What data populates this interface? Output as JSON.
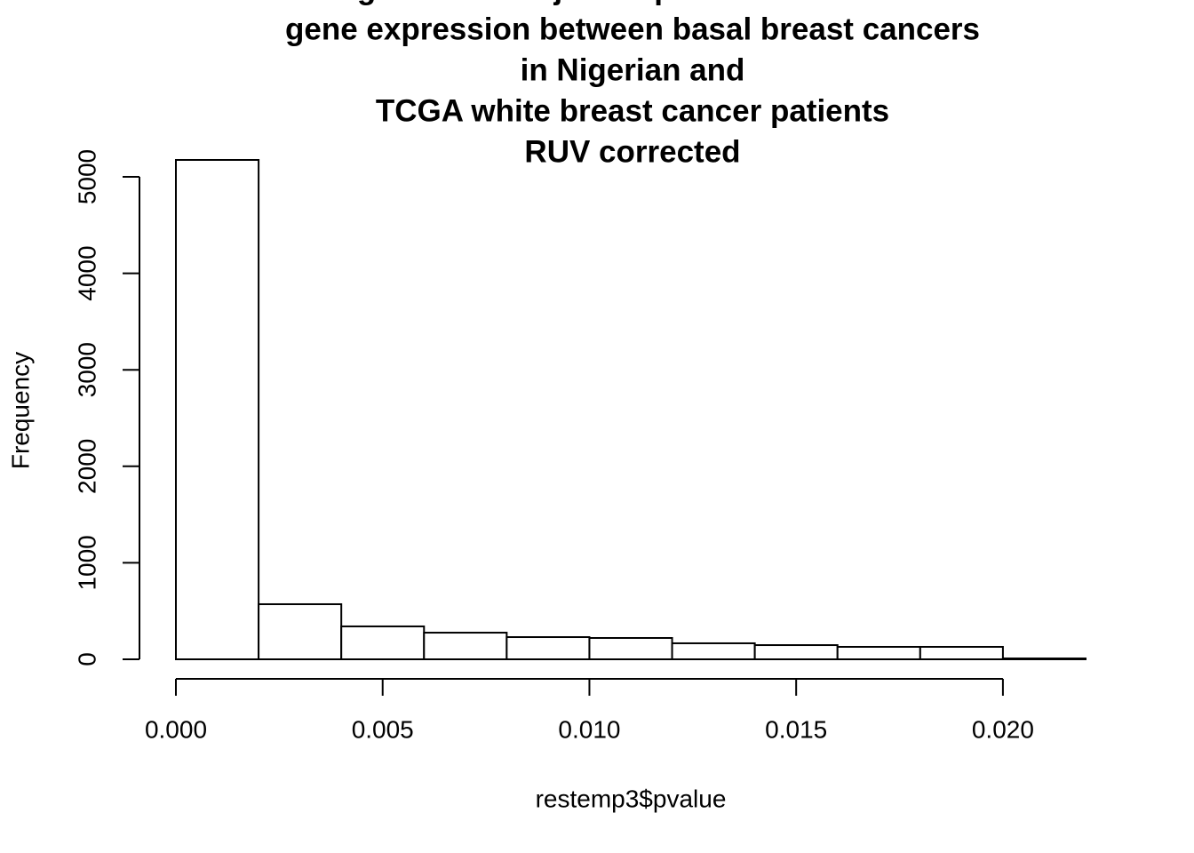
{
  "chart_data": {
    "type": "histogram",
    "title": [
      "Histogram of unadjusted p-values of differential",
      "gene expression between basal breast cancers",
      "in Nigerian and ",
      "TCGA white breast cancer patients",
      "RUV corrected"
    ],
    "x_label": "restemp3$pvalue",
    "y_label": "Frequency",
    "bins": [
      0,
      0.002,
      0.004,
      0.006,
      0.008,
      0.01,
      0.012,
      0.014,
      0.016,
      0.018,
      0.02,
      0.022
    ],
    "values": [
      5175,
      571,
      341,
      276,
      230,
      221,
      166,
      147,
      129,
      129,
      9
    ],
    "color": "#ffffff",
    "edge_color": "#000000",
    "xlim": [
      0,
      0.022
    ],
    "ylim": [
      0,
      5000
    ],
    "xticks": [
      {
        "value": 0,
        "label": "0.000"
      },
      {
        "value": 0.005,
        "label": "0.005"
      },
      {
        "value": 0.01,
        "label": "0.010"
      },
      {
        "value": 0.015,
        "label": "0.015"
      },
      {
        "value": 0.02,
        "label": "0.020"
      }
    ],
    "yticks": [
      0,
      1000,
      2000,
      3000,
      4000,
      5000
    ]
  }
}
